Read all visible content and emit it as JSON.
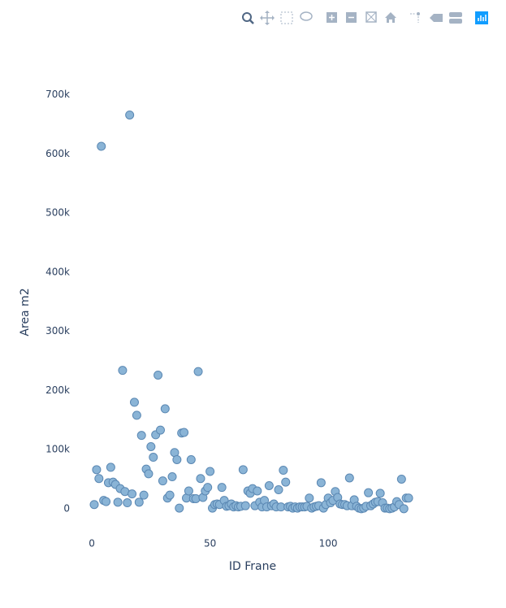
{
  "chart_data": {
    "type": "scatter",
    "x_label": "ID Frane",
    "y_label": "Area m2",
    "x": [
      1,
      2,
      3,
      4,
      5,
      6,
      7,
      8,
      9,
      10,
      11,
      12,
      13,
      14,
      15,
      16,
      17,
      18,
      19,
      20,
      21,
      22,
      23,
      24,
      25,
      26,
      27,
      28,
      29,
      30,
      31,
      32,
      33,
      34,
      35,
      36,
      37,
      38,
      39,
      40,
      41,
      42,
      43,
      44,
      45,
      46,
      47,
      48,
      49,
      50,
      51,
      52,
      53,
      54,
      55,
      56,
      57,
      58,
      59,
      60,
      61,
      62,
      63,
      64,
      65,
      66,
      67,
      68,
      69,
      70,
      71,
      72,
      73,
      74,
      75,
      76,
      77,
      78,
      79,
      80,
      81,
      82,
      83,
      84,
      85,
      86,
      87,
      88,
      89,
      90,
      91,
      92,
      93,
      94,
      95,
      96,
      97,
      98,
      99,
      100,
      101,
      102,
      103,
      104,
      105,
      106,
      107,
      108,
      109,
      110,
      111,
      112,
      113,
      114,
      115,
      116,
      117,
      118,
      119,
      120,
      121,
      122,
      123,
      124,
      125,
      126,
      127,
      128,
      129,
      130,
      131,
      132,
      133,
      134
    ],
    "values": [
      7000,
      66000,
      51000,
      613000,
      14000,
      12000,
      44000,
      70000,
      45000,
      41000,
      11000,
      34000,
      234000,
      29000,
      10000,
      666000,
      25000,
      180000,
      158000,
      11000,
      124000,
      23000,
      67000,
      59000,
      105000,
      87000,
      125000,
      226000,
      133000,
      47000,
      169000,
      18000,
      23000,
      54000,
      95000,
      83000,
      1000,
      128000,
      129000,
      18000,
      30000,
      83000,
      17000,
      17000,
      232000,
      51000,
      19000,
      30000,
      36000,
      63000,
      1000,
      7000,
      8000,
      7000,
      36000,
      14000,
      4000,
      5000,
      8000,
      3000,
      5000,
      3000,
      4000,
      66000,
      5000,
      30000,
      26000,
      34000,
      5000,
      30000,
      11000,
      3000,
      14000,
      3000,
      39000,
      5000,
      8000,
      3000,
      32000,
      3000,
      65000,
      45000,
      3000,
      4000,
      1000,
      3000,
      1000,
      3000,
      3000,
      3000,
      4000,
      18000,
      1000,
      3000,
      4000,
      5000,
      44000,
      1000,
      7000,
      18000,
      10000,
      14000,
      29000,
      19000,
      8000,
      7000,
      7000,
      5000,
      52000,
      5000,
      15000,
      4000,
      1000,
      0,
      1000,
      4000,
      27000,
      5000,
      8000,
      11000,
      12000,
      26000,
      10000,
      1000,
      1000,
      0,
      1000,
      3000,
      12000,
      7000,
      50000,
      0,
      18000,
      18000
    ],
    "color": "#8ab4d6",
    "edge_color": "#5b88b3",
    "xlim": [
      -4.5,
      138.1
    ],
    "xticks": [
      0,
      50,
      100
    ],
    "ylim": [
      -47000,
      723000
    ],
    "yticks": [
      0,
      {
        "value": 100000,
        "label": "100k"
      },
      {
        "value": 200000,
        "label": "200k"
      },
      {
        "value": 300000,
        "label": "300k"
      },
      {
        "value": 400000,
        "label": "400k"
      },
      {
        "value": 500000,
        "label": "500k"
      },
      {
        "value": 600000,
        "label": "600k"
      },
      {
        "value": 700000,
        "label": "700k"
      }
    ],
    "grid": false
  }
}
